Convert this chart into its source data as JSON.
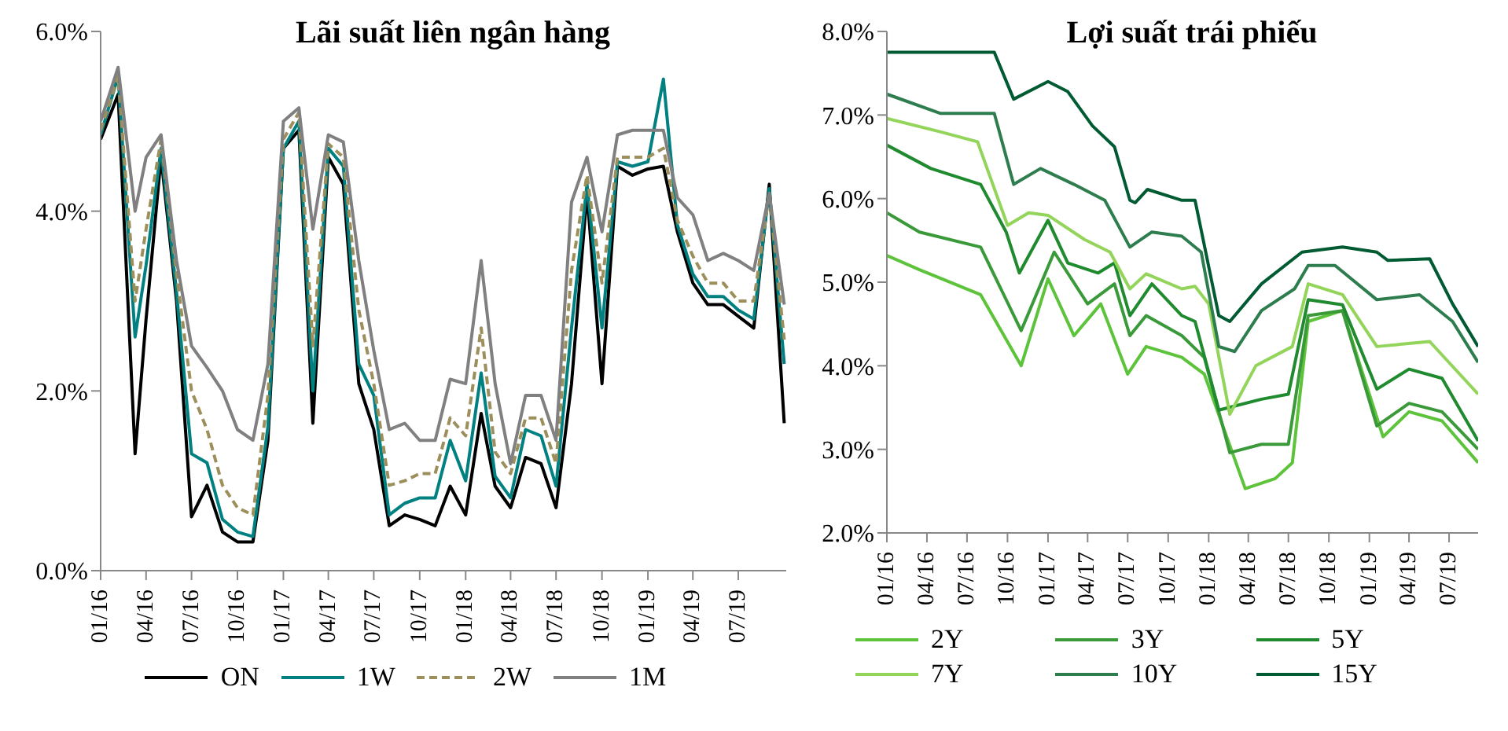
{
  "chart_data": [
    {
      "type": "line",
      "title": "Lãi suất liên ngân hàng",
      "x": [
        "2016-01-01",
        "2016-02-05",
        "2016-03-10",
        "2016-04-01",
        "2016-05-01",
        "2016-06-01",
        "2016-07-01",
        "2016-08-01",
        "2016-09-01",
        "2016-10-01",
        "2016-11-01",
        "2016-12-01",
        "2017-01-01",
        "2017-02-01",
        "2017-03-01",
        "2017-04-01",
        "2017-05-01",
        "2017-06-01",
        "2017-07-01",
        "2017-08-01",
        "2017-09-01",
        "2017-10-01",
        "2017-11-01",
        "2017-12-01",
        "2018-01-01",
        "2018-02-01",
        "2018-03-01",
        "2018-04-01",
        "2018-05-01",
        "2018-06-01",
        "2018-07-01",
        "2018-08-01",
        "2018-09-01",
        "2018-10-01",
        "2018-11-01",
        "2018-12-01",
        "2019-01-01",
        "2019-02-01",
        "2019-03-01",
        "2019-04-01",
        "2019-05-01",
        "2019-06-01",
        "2019-07-01",
        "2019-08-01",
        "2019-09-01",
        "2019-10-01"
      ],
      "series": [
        {
          "name": "ON",
          "color": "#000000",
          "values": [
            4.8,
            5.3,
            1.3,
            2.8,
            4.6,
            3.0,
            0.6,
            0.95,
            0.43,
            0.32,
            0.32,
            1.45,
            4.7,
            4.9,
            1.64,
            4.6,
            4.3,
            2.08,
            1.57,
            0.5,
            0.62,
            0.57,
            0.5,
            0.94,
            0.62,
            1.75,
            0.94,
            0.7,
            1.26,
            1.19,
            0.7,
            2.08,
            4.2,
            2.08,
            4.5,
            4.4,
            4.47,
            4.5,
            3.77,
            3.2,
            2.96,
            2.96,
            2.83,
            2.7,
            4.3,
            1.64
          ]
        },
        {
          "name": "1W",
          "color": "#008080",
          "values": [
            4.85,
            5.5,
            2.6,
            3.4,
            4.7,
            3.1,
            1.3,
            1.2,
            0.57,
            0.43,
            0.38,
            1.6,
            4.7,
            5.0,
            2.0,
            4.7,
            4.5,
            2.3,
            1.95,
            0.62,
            0.75,
            0.81,
            0.81,
            1.45,
            1.0,
            2.2,
            1.05,
            0.81,
            1.57,
            1.5,
            0.94,
            2.7,
            4.3,
            2.7,
            4.55,
            4.5,
            4.55,
            5.47,
            3.85,
            3.3,
            3.05,
            3.05,
            2.9,
            2.8,
            4.25,
            2.3
          ]
        },
        {
          "name": "2W",
          "color": "#9c8f5c",
          "line_style": "dashed",
          "values": [
            4.9,
            5.5,
            3.0,
            3.8,
            4.8,
            3.3,
            2.0,
            1.57,
            0.95,
            0.7,
            0.62,
            1.95,
            4.8,
            5.1,
            2.5,
            4.75,
            4.6,
            2.9,
            2.08,
            0.95,
            1.0,
            1.08,
            1.08,
            1.7,
            1.5,
            2.7,
            1.32,
            1.08,
            1.7,
            1.7,
            1.19,
            3.34,
            4.4,
            3.2,
            4.6,
            4.6,
            4.6,
            4.7,
            3.9,
            3.5,
            3.2,
            3.2,
            3.0,
            3.0,
            4.2,
            2.57
          ]
        },
        {
          "name": "1M",
          "color": "#808080",
          "values": [
            5.0,
            5.6,
            4.0,
            4.6,
            4.85,
            3.45,
            2.5,
            2.26,
            2.0,
            1.57,
            1.45,
            2.3,
            5.0,
            5.15,
            3.8,
            4.85,
            4.77,
            3.45,
            2.45,
            1.57,
            1.64,
            1.45,
            1.45,
            2.13,
            2.08,
            3.45,
            2.08,
            1.19,
            1.95,
            1.95,
            1.45,
            4.1,
            4.6,
            3.77,
            4.85,
            4.9,
            4.9,
            4.9,
            4.15,
            3.96,
            3.45,
            3.53,
            3.45,
            3.34,
            4.2,
            2.96
          ]
        }
      ],
      "xlim": [
        "2016-01-01",
        "2019-10-05"
      ],
      "xticks": [
        {
          "value": "2016-01-01",
          "label": "01/16"
        },
        {
          "value": "2016-04-01",
          "label": "04/16"
        },
        {
          "value": "2016-07-01",
          "label": "07/16"
        },
        {
          "value": "2016-10-01",
          "label": "10/16"
        },
        {
          "value": "2017-01-01",
          "label": "01/17"
        },
        {
          "value": "2017-04-01",
          "label": "04/17"
        },
        {
          "value": "2017-07-01",
          "label": "07/17"
        },
        {
          "value": "2017-10-01",
          "label": "10/17"
        },
        {
          "value": "2018-01-01",
          "label": "01/18"
        },
        {
          "value": "2018-04-01",
          "label": "04/18"
        },
        {
          "value": "2018-07-01",
          "label": "07/18"
        },
        {
          "value": "2018-10-01",
          "label": "10/18"
        },
        {
          "value": "2019-01-01",
          "label": "01/19"
        },
        {
          "value": "2019-04-01",
          "label": "04/19"
        },
        {
          "value": "2019-07-01",
          "label": "07/19"
        }
      ],
      "ylim": [
        0,
        6
      ],
      "yticks": [
        {
          "value": 0,
          "label": "0.0%"
        },
        {
          "value": 2,
          "label": "2.0%"
        },
        {
          "value": 4,
          "label": "4.0%"
        },
        {
          "value": 6,
          "label": "6.0%"
        }
      ],
      "grid": false,
      "legend": "bottom"
    },
    {
      "type": "line",
      "title": "Lợi suất trái phiếu",
      "series": [
        {
          "name": "2Y",
          "color": "#5cc33a",
          "x": [
            "2016-01-01",
            "2016-03-15",
            "2016-08-01",
            "2016-11-01",
            "2017-01-01",
            "2017-03-01",
            "2017-05-01",
            "2017-07-01",
            "2017-08-12",
            "2017-11-01",
            "2017-12-22",
            "2018-03-25",
            "2018-06-01",
            "2018-07-10",
            "2018-08-15",
            "2018-11-01",
            "2019-02-01",
            "2019-04-01",
            "2019-06-15",
            "2019-09-05"
          ],
          "values": [
            5.32,
            5.15,
            4.85,
            4.0,
            5.04,
            4.36,
            4.74,
            3.9,
            4.23,
            4.1,
            3.9,
            2.53,
            2.65,
            2.84,
            4.53,
            4.66,
            3.15,
            3.45,
            3.34,
            2.84
          ]
        },
        {
          "name": "3Y",
          "color": "#3a9a3a",
          "x": [
            "2016-01-01",
            "2016-03-15",
            "2016-08-01",
            "2016-11-01",
            "2017-01-15",
            "2017-04-01",
            "2017-06-01",
            "2017-07-06",
            "2017-08-12",
            "2017-11-01",
            "2017-12-22",
            "2018-02-18",
            "2018-05-01",
            "2018-07-01",
            "2018-08-15",
            "2018-11-01",
            "2019-01-18",
            "2019-04-01",
            "2019-06-15",
            "2019-09-05"
          ],
          "values": [
            5.83,
            5.6,
            5.42,
            4.42,
            5.36,
            4.74,
            4.98,
            4.36,
            4.6,
            4.36,
            4.1,
            2.96,
            3.06,
            3.06,
            4.6,
            4.66,
            3.28,
            3.55,
            3.45,
            3.0
          ]
        },
        {
          "name": "5Y",
          "color": "#1f8a2e",
          "x": [
            "2016-01-01",
            "2016-04-10",
            "2016-08-01",
            "2016-09-28",
            "2016-10-28",
            "2017-01-01",
            "2017-02-15",
            "2017-04-25",
            "2017-06-01",
            "2017-07-06",
            "2017-08-25",
            "2017-11-01",
            "2017-12-01",
            "2018-01-24",
            "2018-05-01",
            "2018-07-01",
            "2018-08-15",
            "2018-11-01",
            "2019-01-18",
            "2019-04-01",
            "2019-06-15",
            "2019-09-05"
          ],
          "values": [
            6.64,
            6.36,
            6.17,
            5.6,
            5.11,
            5.74,
            5.23,
            5.11,
            5.23,
            4.6,
            4.98,
            4.6,
            4.53,
            3.47,
            3.6,
            3.66,
            4.79,
            4.73,
            3.72,
            3.96,
            3.85,
            3.1
          ]
        },
        {
          "name": "7Y",
          "color": "#93d45a",
          "x": [
            "2016-01-01",
            "2016-05-01",
            "2016-07-25",
            "2016-10-01",
            "2016-11-18",
            "2017-01-01",
            "2017-03-25",
            "2017-05-22",
            "2017-07-06",
            "2017-08-12",
            "2017-11-01",
            "2017-12-01",
            "2018-01-01",
            "2018-02-18",
            "2018-04-18",
            "2018-07-10",
            "2018-08-15",
            "2018-11-01",
            "2019-01-18",
            "2019-05-18",
            "2019-09-05"
          ],
          "values": [
            6.96,
            6.8,
            6.68,
            5.68,
            5.83,
            5.8,
            5.51,
            5.36,
            4.92,
            5.1,
            4.92,
            4.95,
            4.74,
            3.42,
            4.0,
            4.23,
            4.98,
            4.85,
            4.23,
            4.29,
            3.66
          ]
        },
        {
          "name": "10Y",
          "color": "#2e7d4f",
          "x": [
            "2016-01-01",
            "2016-05-01",
            "2016-09-01",
            "2016-10-15",
            "2016-12-15",
            "2017-03-01",
            "2017-05-10",
            "2017-07-06",
            "2017-08-25",
            "2017-11-01",
            "2017-12-15",
            "2018-01-24",
            "2018-03-01",
            "2018-05-01",
            "2018-07-15",
            "2018-08-15",
            "2018-10-15",
            "2019-01-18",
            "2019-04-25",
            "2019-07-09",
            "2019-09-05"
          ],
          "values": [
            7.25,
            7.02,
            7.02,
            6.17,
            6.36,
            6.17,
            5.98,
            5.42,
            5.6,
            5.55,
            5.36,
            4.23,
            4.17,
            4.66,
            4.92,
            5.2,
            5.2,
            4.79,
            4.85,
            4.53,
            4.04
          ]
        },
        {
          "name": "15Y",
          "color": "#005a32",
          "x": [
            "2016-01-01",
            "2016-09-01",
            "2016-10-15",
            "2017-01-01",
            "2017-02-15",
            "2017-04-12",
            "2017-06-01",
            "2017-07-06",
            "2017-07-18",
            "2017-08-15",
            "2017-11-01",
            "2017-12-01",
            "2018-01-24",
            "2018-02-18",
            "2018-05-01",
            "2018-08-01",
            "2018-11-01",
            "2019-01-18",
            "2019-02-12",
            "2019-05-18",
            "2019-07-09",
            "2019-09-05"
          ],
          "values": [
            7.75,
            7.75,
            7.19,
            7.4,
            7.28,
            6.87,
            6.62,
            5.98,
            5.95,
            6.11,
            5.98,
            5.98,
            4.6,
            4.53,
            4.98,
            5.36,
            5.42,
            5.36,
            5.26,
            5.28,
            4.74,
            4.23
          ]
        }
      ],
      "xlim": [
        "2016-01-01",
        "2019-09-05"
      ],
      "xticks": [
        {
          "value": "2016-01-01",
          "label": "01/16"
        },
        {
          "value": "2016-04-01",
          "label": "04/16"
        },
        {
          "value": "2016-07-01",
          "label": "07/16"
        },
        {
          "value": "2016-10-01",
          "label": "10/16"
        },
        {
          "value": "2017-01-01",
          "label": "01/17"
        },
        {
          "value": "2017-04-01",
          "label": "04/17"
        },
        {
          "value": "2017-07-01",
          "label": "07/17"
        },
        {
          "value": "2017-10-01",
          "label": "10/17"
        },
        {
          "value": "2018-01-01",
          "label": "01/18"
        },
        {
          "value": "2018-04-01",
          "label": "04/18"
        },
        {
          "value": "2018-07-01",
          "label": "07/18"
        },
        {
          "value": "2018-10-01",
          "label": "10/18"
        },
        {
          "value": "2019-01-01",
          "label": "01/19"
        },
        {
          "value": "2019-04-01",
          "label": "04/19"
        },
        {
          "value": "2019-07-01",
          "label": "07/19"
        }
      ],
      "ylim": [
        2,
        8
      ],
      "yticks": [
        {
          "value": 2,
          "label": "2.0%"
        },
        {
          "value": 3,
          "label": "3.0%"
        },
        {
          "value": 4,
          "label": "4.0%"
        },
        {
          "value": 5,
          "label": "5.0%"
        },
        {
          "value": 6,
          "label": "6.0%"
        },
        {
          "value": 7,
          "label": "7.0%"
        },
        {
          "value": 8,
          "label": "8.0%"
        }
      ],
      "grid": false,
      "legend": "bottom"
    }
  ]
}
